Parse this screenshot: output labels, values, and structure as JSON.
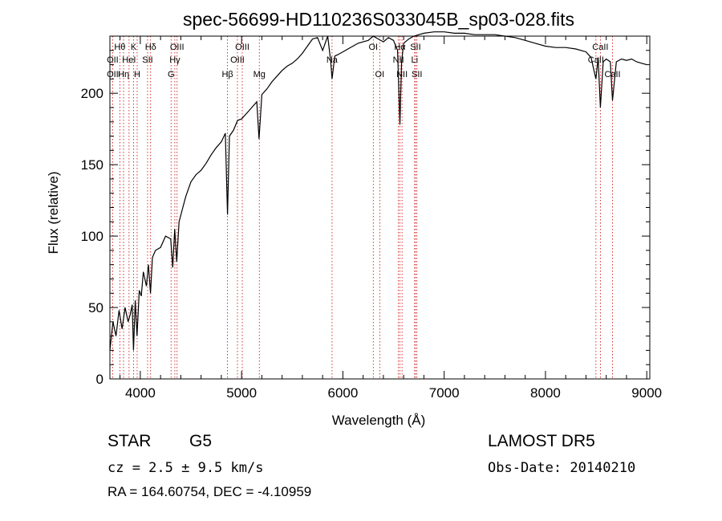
{
  "chart_data": {
    "type": "line",
    "title": "spec-56699-HD110236S033045B_sp03-028.fits",
    "xlabel": "Wavelength (Å)",
    "ylabel": "Flux (relative)",
    "xlim": [
      3700,
      9030
    ],
    "ylim": [
      0,
      240
    ],
    "x_ticks": [
      4000,
      5000,
      6000,
      7000,
      8000,
      9000
    ],
    "y_ticks": [
      0,
      50,
      100,
      150,
      200
    ],
    "series": [
      {
        "x": [
          3700,
          3730,
          3760,
          3790,
          3820,
          3850,
          3880,
          3900,
          3920,
          3933,
          3950,
          3968,
          3990,
          4010,
          4030,
          4060,
          4080,
          4101,
          4120,
          4150,
          4200,
          4250,
          4300,
          4320,
          4340,
          4360,
          4383,
          4420,
          4450,
          4500,
          4550,
          4600,
          4650,
          4700,
          4750,
          4800,
          4840,
          4861,
          4880,
          4920,
          4960,
          5000,
          5050,
          5100,
          5150,
          5172,
          5200,
          5250,
          5300,
          5350,
          5400,
          5450,
          5500,
          5550,
          5600,
          5650,
          5700,
          5750,
          5800,
          5850,
          5880,
          5893,
          5920,
          5950,
          6000,
          6050,
          6100,
          6150,
          6200,
          6250,
          6300,
          6350,
          6400,
          6450,
          6500,
          6540,
          6563,
          6580,
          6600,
          6650,
          6700,
          6750,
          6800,
          6900,
          7000,
          7100,
          7200,
          7300,
          7400,
          7500,
          7600,
          7700,
          7800,
          7900,
          8000,
          8100,
          8200,
          8300,
          8400,
          8450,
          8498,
          8520,
          8542,
          8570,
          8600,
          8640,
          8662,
          8700,
          8750,
          8800,
          8850,
          8900,
          8950,
          9000
        ],
        "y": [
          20,
          40,
          30,
          48,
          35,
          50,
          40,
          45,
          52,
          20,
          55,
          30,
          62,
          58,
          75,
          65,
          80,
          60,
          85,
          90,
          92,
          100,
          98,
          78,
          105,
          82,
          110,
          120,
          128,
          138,
          143,
          146,
          151,
          157,
          162,
          166,
          172,
          115,
          170,
          174,
          181,
          182,
          186,
          190,
          194,
          168,
          199,
          203,
          208,
          212,
          216,
          219,
          221,
          224,
          228,
          233,
          238,
          239,
          230,
          240,
          222,
          210,
          226,
          227,
          229,
          231,
          233,
          235,
          236,
          237,
          240,
          238,
          236,
          239,
          237,
          230,
          178,
          222,
          235,
          238,
          240,
          241,
          242,
          243,
          243,
          242,
          242,
          241,
          241,
          241,
          240,
          239,
          237,
          235,
          233,
          232,
          232,
          231,
          229,
          225,
          210,
          225,
          190,
          222,
          224,
          222,
          195,
          222,
          224,
          223,
          224,
          222,
          221,
          220
        ]
      }
    ],
    "annotations": [
      {
        "label": "Hθ",
        "x": 3798,
        "row": 1
      },
      {
        "label": "OII",
        "x": 3727,
        "row": 2
      },
      {
        "label": "OII",
        "x": 3727,
        "row": 3
      },
      {
        "label": "K",
        "x": 3934,
        "row": 1
      },
      {
        "label": "HeI",
        "x": 3889,
        "row": 2
      },
      {
        "label": "Hη",
        "x": 3835,
        "row": 3
      },
      {
        "label": "H",
        "x": 3969,
        "row": 3
      },
      {
        "label": "Hδ",
        "x": 4102,
        "row": 1
      },
      {
        "label": "SII",
        "x": 4072,
        "row": 2
      },
      {
        "label": "OIII",
        "x": 4363,
        "row": 1
      },
      {
        "label": "Hγ",
        "x": 4341,
        "row": 2
      },
      {
        "label": "G",
        "x": 4304,
        "row": 3
      },
      {
        "label": "Hβ",
        "x": 4861,
        "row": 3
      },
      {
        "label": "OIII",
        "x": 5007,
        "row": 1
      },
      {
        "label": "OIII",
        "x": 4959,
        "row": 2
      },
      {
        "label": "Mg",
        "x": 5175,
        "row": 3
      },
      {
        "label": "Na",
        "x": 5893,
        "row": 2
      },
      {
        "label": "OI",
        "x": 6300,
        "row": 1
      },
      {
        "label": "OI",
        "x": 6364,
        "row": 3
      },
      {
        "label": "Hα",
        "x": 6563,
        "row": 1
      },
      {
        "label": "NII",
        "x": 6548,
        "row": 2
      },
      {
        "label": "NII",
        "x": 6584,
        "row": 3
      },
      {
        "label": "SII",
        "x": 6717,
        "row": 1
      },
      {
        "label": "Li",
        "x": 6708,
        "row": 2
      },
      {
        "label": "SII",
        "x": 6731,
        "row": 3
      },
      {
        "label": "CaII",
        "x": 8542,
        "row": 1
      },
      {
        "label": "CaII",
        "x": 8498,
        "row": 2
      },
      {
        "label": "CaII",
        "x": 8662,
        "row": 3
      }
    ],
    "line_markers": [
      3727,
      3798,
      3835,
      3889,
      3934,
      3969,
      4072,
      4102,
      4304,
      4341,
      4363,
      4861,
      4959,
      5007,
      5175,
      5893,
      6300,
      6364,
      6548,
      6563,
      6584,
      6708,
      6717,
      6731,
      8498,
      8542,
      8662
    ],
    "colors": {
      "spectrum": "#000000",
      "markers": "#cc0000",
      "axes": "#000000"
    }
  },
  "info": {
    "object_type": "STAR",
    "object_class": "G5",
    "survey": "LAMOST  DR5",
    "redshift": "cz = 2.5 ± 9.5 km/s",
    "obs_date": "Obs-Date: 20140210",
    "coordinates": "RA = 164.60754, DEC =  -4.10959"
  }
}
